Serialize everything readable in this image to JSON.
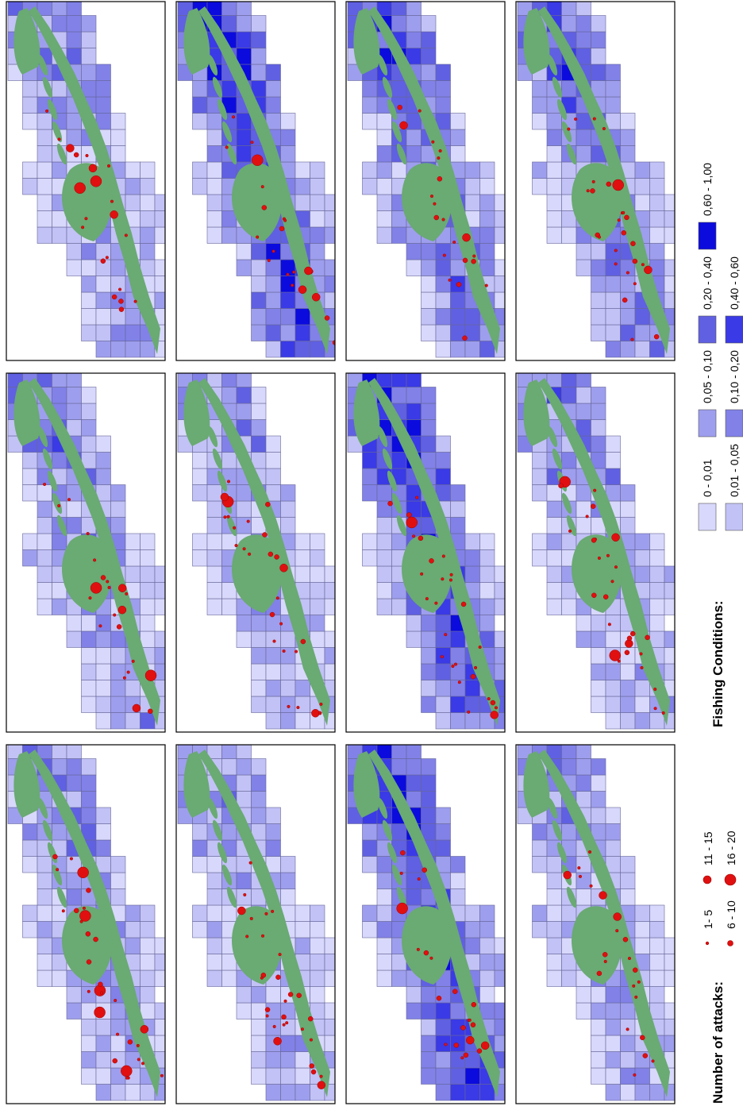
{
  "palette": {
    "land": "#6aaa73",
    "attack": "#e01010",
    "attack_stroke": "#a00000",
    "grid_stroke": "#666699",
    "frame": "#000000"
  },
  "legend": {
    "attacks_title": "Number of attacks:",
    "attack_classes": [
      {
        "label": "1- 5",
        "size": 1
      },
      {
        "label": "6 - 10",
        "size": 2
      },
      {
        "label": "11 - 15",
        "size": 3
      },
      {
        "label": "16 - 20",
        "size": 4
      }
    ],
    "fishing_title": "Fishing Conditions:",
    "fishing_classes": [
      {
        "label": "0 - 0,01",
        "color": "#d8d8fc"
      },
      {
        "label": "0,01 - 0,05",
        "color": "#c2c2f6"
      },
      {
        "label": "0,05 - 0,10",
        "color": "#9e9eee"
      },
      {
        "label": "0,10 - 0,20",
        "color": "#8181e8"
      },
      {
        "label": "0,20 - 0,40",
        "color": "#6060e2"
      },
      {
        "label": "0,40 - 0,60",
        "color": "#3a3ae6"
      },
      {
        "label": "0,60 - 1,00",
        "color": "#0b0bde"
      }
    ]
  },
  "maps": {
    "rows": 3,
    "cols": 4,
    "panels": [
      {
        "id": "p1",
        "intensity": 0.35,
        "seed": 11
      },
      {
        "id": "p2",
        "intensity": 0.25,
        "seed": 23
      },
      {
        "id": "p3",
        "intensity": 0.75,
        "seed": 37
      },
      {
        "id": "p4",
        "intensity": 0.3,
        "seed": 41
      },
      {
        "id": "p5",
        "intensity": 0.4,
        "seed": 53
      },
      {
        "id": "p6",
        "intensity": 0.3,
        "seed": 67
      },
      {
        "id": "p7",
        "intensity": 0.75,
        "seed": 71
      },
      {
        "id": "p8",
        "intensity": 0.35,
        "seed": 83
      },
      {
        "id": "p9",
        "intensity": 0.35,
        "seed": 97
      },
      {
        "id": "p10",
        "intensity": 0.75,
        "seed": 101
      },
      {
        "id": "p11",
        "intensity": 0.6,
        "seed": 113
      },
      {
        "id": "p12",
        "intensity": 0.5,
        "seed": 127
      }
    ]
  }
}
